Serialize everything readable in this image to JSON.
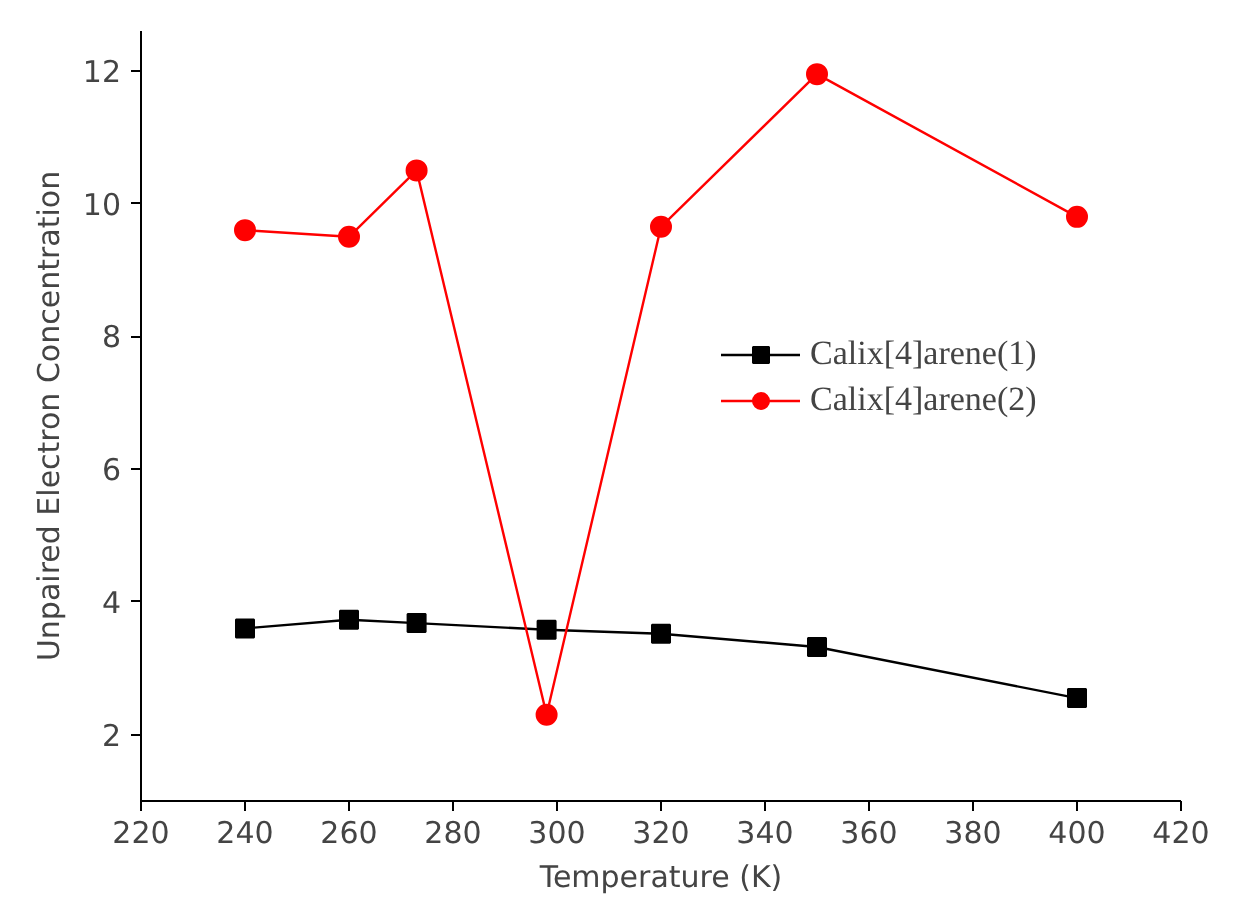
{
  "chart_data": {
    "type": "line",
    "xlabel": "Temperature (K)",
    "ylabel": "Unpaired Electron Concentration",
    "x": [
      240,
      260,
      273,
      298,
      320,
      350,
      400
    ],
    "series": [
      {
        "name": "Calix[4]arene(1)",
        "color": "#000000",
        "marker": "square",
        "values": [
          3.6,
          3.73,
          3.68,
          3.58,
          3.52,
          3.32,
          2.55
        ]
      },
      {
        "name": "Calix[4]arene(2)",
        "color": "#ff0000",
        "marker": "circle",
        "values": [
          9.6,
          9.5,
          10.5,
          2.3,
          9.65,
          11.95,
          9.8
        ]
      }
    ],
    "xlim": [
      220,
      420
    ],
    "ylim": [
      1,
      12.6
    ],
    "xticks": [
      220,
      240,
      260,
      280,
      300,
      320,
      340,
      360,
      380,
      400,
      420
    ],
    "yticks": [
      2,
      4,
      6,
      8,
      10,
      12
    ],
    "grid": false,
    "legend": "right"
  }
}
